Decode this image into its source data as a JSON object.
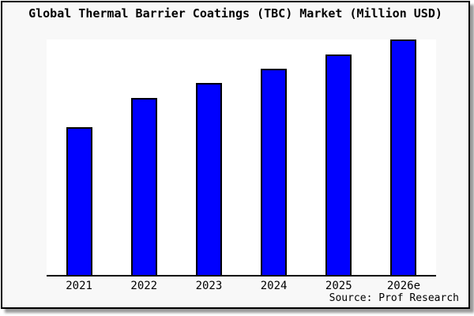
{
  "page": {
    "background": "#ffffff",
    "frame_background": "#f8f8f8",
    "plot_background": "#ffffff",
    "frame_border_color": "#000000"
  },
  "chart_data": {
    "type": "bar",
    "title": "Global Thermal Barrier Coatings (TBC) Market (Million USD)",
    "categories": [
      "2021",
      "2022",
      "2023",
      "2024",
      "2025",
      "2026e"
    ],
    "values": [
      188,
      225,
      245,
      263,
      281,
      300
    ],
    "value_note": "no y-axis or data labels shown; values are estimated relative bar heights (pixels), 2026e is tallest",
    "xlabel": "",
    "ylabel": "",
    "ylim": [
      0,
      300
    ],
    "grid": false,
    "legend": false,
    "bar_color": "#0000ff",
    "bar_border_color": "#000000",
    "axis_line_color": "#000000"
  },
  "footer": {
    "source": "Source: Prof Research"
  }
}
